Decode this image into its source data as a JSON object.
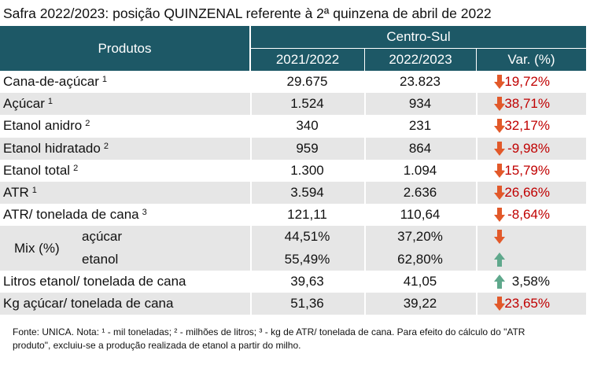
{
  "title": "Safra 2022/2023: posição QUINZENAL referente à 2ª quinzena de abril de 2022",
  "header": {
    "products": "Produtos",
    "region": "Centro-Sul",
    "columns": [
      "2021/2022",
      "2022/2023",
      "Var. (%)"
    ]
  },
  "rows": [
    {
      "label": "Cana-de-açúcar",
      "note": "1",
      "values": [
        "29.675",
        "23.823",
        "-19,72%"
      ],
      "arrow": "down"
    },
    {
      "label": "Açúcar",
      "note": "1",
      "values": [
        "1.524",
        "934",
        "-38,71%"
      ],
      "arrow": "down"
    },
    {
      "label": "Etanol anidro",
      "note": "2",
      "values": [
        "340",
        "231",
        "-32,17%"
      ],
      "arrow": "down"
    },
    {
      "label": "Etanol hidratado",
      "note": "2",
      "values": [
        "959",
        "864",
        "-9,98%"
      ],
      "arrow": "down"
    },
    {
      "label": "Etanol total",
      "note": "2",
      "values": [
        "1.300",
        "1.094",
        "-15,79%"
      ],
      "arrow": "down"
    },
    {
      "label": "ATR",
      "note": "1",
      "values": [
        "3.594",
        "2.636",
        "-26,66%"
      ],
      "arrow": "down"
    },
    {
      "label": "ATR/ tonelada de cana",
      "note": "3",
      "values": [
        "121,11",
        "110,64",
        "-8,64%"
      ],
      "arrow": "down"
    },
    {
      "label": "Mix (%)",
      "sub": [
        {
          "label": "açúcar",
          "values": [
            "44,51%",
            "37,20%"
          ],
          "arrow": "down"
        },
        {
          "label": "etanol",
          "values": [
            "55,49%",
            "62,80%"
          ],
          "arrow": "up"
        }
      ]
    },
    {
      "label": "Litros etanol/ tonelada de cana",
      "values": [
        "39,63",
        "41,05",
        "3,58%"
      ],
      "arrow": "up"
    },
    {
      "label": "Kg açúcar/ tonelada de cana",
      "values": [
        "51,36",
        "39,22",
        "-23,65%"
      ],
      "arrow": "down"
    }
  ],
  "footnote": "Fonte: UNICA. Nota: ¹ - mil toneladas; ² - milhões de litros; ³ - kg de ATR/ tonelada de cana. Para efeito do cálculo do \"ATR produto\", excluiu-se a produção realizada de etanol a partir do milho."
}
